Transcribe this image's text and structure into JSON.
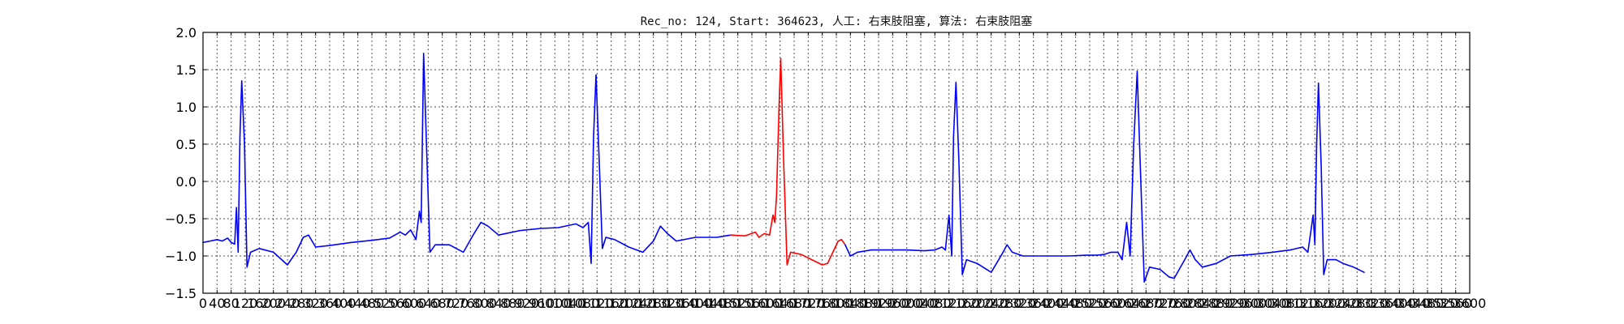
{
  "title": "Rec_no: 124, Start: 364623, 人工: 右束肢阻塞, 算法: 右束肢阻塞",
  "chart_data": {
    "type": "line",
    "title": "Rec_no: 124, Start: 364623, 人工: 右束肢阻塞, 算法: 右束肢阻塞",
    "xlabel": "",
    "ylabel": "",
    "xlim": [
      0,
      3600
    ],
    "ylim": [
      -1.5,
      2.0
    ],
    "grid": true,
    "legend": "none",
    "y_ticks": [
      -1.5,
      -1.0,
      -0.5,
      0.0,
      0.5,
      1.0,
      1.5,
      2.0
    ],
    "y_tick_labels": [
      "−1.5",
      "−1.0",
      "−0.5",
      "0.0",
      "0.5",
      "1.0",
      "1.5",
      "2.0"
    ],
    "x_tick_step": 40,
    "x_tick_labels_first": [
      "0",
      "40",
      "80"
    ],
    "beats_r_peak_x": [
      110,
      627,
      1117,
      1642,
      2140,
      2655,
      3170
    ],
    "beats_r_peak_y": [
      1.35,
      1.72,
      1.43,
      1.65,
      1.33,
      1.48,
      1.32
    ],
    "x_end": 3300,
    "series": [
      {
        "color": "#0000ff",
        "points": [
          [
            0,
            -0.82
          ],
          [
            20,
            -0.8
          ],
          [
            40,
            -0.78
          ],
          [
            55,
            -0.8
          ],
          [
            70,
            -0.76
          ],
          [
            80,
            -0.82
          ],
          [
            90,
            -0.84
          ],
          [
            95,
            -0.35
          ],
          [
            100,
            -0.95
          ],
          [
            105,
            0.6
          ],
          [
            110,
            1.35
          ],
          [
            118,
            0.5
          ],
          [
            125,
            -1.15
          ],
          [
            135,
            -0.95
          ],
          [
            160,
            -0.9
          ],
          [
            200,
            -0.95
          ],
          [
            240,
            -1.12
          ],
          [
            265,
            -0.95
          ],
          [
            285,
            -0.75
          ],
          [
            300,
            -0.72
          ],
          [
            320,
            -0.88
          ],
          [
            360,
            -0.86
          ],
          [
            420,
            -0.82
          ],
          [
            480,
            -0.79
          ],
          [
            530,
            -0.76
          ],
          [
            560,
            -0.68
          ],
          [
            575,
            -0.72
          ],
          [
            590,
            -0.65
          ],
          [
            605,
            -0.78
          ],
          [
            615,
            -0.4
          ],
          [
            620,
            -0.55
          ],
          [
            627,
            1.72
          ],
          [
            635,
            0.5
          ],
          [
            645,
            -0.95
          ],
          [
            660,
            -0.85
          ],
          [
            700,
            -0.85
          ],
          [
            740,
            -0.95
          ],
          [
            770,
            -0.7
          ],
          [
            790,
            -0.55
          ],
          [
            810,
            -0.6
          ],
          [
            840,
            -0.72
          ],
          [
            900,
            -0.66
          ],
          [
            960,
            -0.63
          ],
          [
            1010,
            -0.62
          ],
          [
            1060,
            -0.57
          ],
          [
            1080,
            -0.62
          ],
          [
            1095,
            -0.55
          ],
          [
            1103,
            -1.1
          ],
          [
            1110,
            0.6
          ],
          [
            1117,
            1.43
          ],
          [
            1125,
            0.4
          ],
          [
            1135,
            -0.9
          ],
          [
            1145,
            -0.75
          ],
          [
            1170,
            -0.78
          ],
          [
            1210,
            -0.88
          ],
          [
            1250,
            -0.95
          ],
          [
            1280,
            -0.8
          ],
          [
            1300,
            -0.6
          ],
          [
            1320,
            -0.7
          ],
          [
            1345,
            -0.8
          ],
          [
            1400,
            -0.75
          ],
          [
            1460,
            -0.75
          ],
          [
            1500,
            -0.72
          ]
        ]
      },
      {
        "color": "#ff0000",
        "points": [
          [
            1500,
            -0.72
          ],
          [
            1540,
            -0.73
          ],
          [
            1570,
            -0.68
          ],
          [
            1580,
            -0.75
          ],
          [
            1595,
            -0.7
          ],
          [
            1610,
            -0.72
          ],
          [
            1620,
            -0.45
          ],
          [
            1625,
            -0.55
          ],
          [
            1630,
            -0.2
          ],
          [
            1637,
            1.0
          ],
          [
            1642,
            1.65
          ],
          [
            1650,
            0.3
          ],
          [
            1660,
            -1.12
          ],
          [
            1670,
            -0.95
          ],
          [
            1700,
            -0.98
          ],
          [
            1730,
            -1.05
          ],
          [
            1760,
            -1.12
          ],
          [
            1775,
            -1.1
          ],
          [
            1790,
            -0.95
          ],
          [
            1805,
            -0.8
          ],
          [
            1815,
            -0.78
          ],
          [
            1825,
            -0.85
          ]
        ]
      },
      {
        "color": "#0000ff",
        "points": [
          [
            1825,
            -0.85
          ],
          [
            1840,
            -1.0
          ],
          [
            1860,
            -0.95
          ],
          [
            1900,
            -0.92
          ],
          [
            1950,
            -0.92
          ],
          [
            2000,
            -0.92
          ],
          [
            2050,
            -0.93
          ],
          [
            2080,
            -0.92
          ],
          [
            2100,
            -0.88
          ],
          [
            2110,
            -0.92
          ],
          [
            2120,
            -0.45
          ],
          [
            2128,
            -1.0
          ],
          [
            2133,
            0.6
          ],
          [
            2140,
            1.33
          ],
          [
            2148,
            0.3
          ],
          [
            2158,
            -1.25
          ],
          [
            2170,
            -1.05
          ],
          [
            2200,
            -1.1
          ],
          [
            2240,
            -1.22
          ],
          [
            2270,
            -0.98
          ],
          [
            2285,
            -0.85
          ],
          [
            2300,
            -0.95
          ],
          [
            2330,
            -1.0
          ],
          [
            2400,
            -1.0
          ],
          [
            2460,
            -1.0
          ],
          [
            2510,
            -0.99
          ],
          [
            2540,
            -0.99
          ],
          [
            2560,
            -0.98
          ],
          [
            2580,
            -0.95
          ],
          [
            2600,
            -0.95
          ],
          [
            2612,
            -1.05
          ],
          [
            2625,
            -0.55
          ],
          [
            2635,
            -1.0
          ],
          [
            2645,
            0.5
          ],
          [
            2655,
            1.48
          ],
          [
            2663,
            0.3
          ],
          [
            2675,
            -1.35
          ],
          [
            2690,
            -1.15
          ],
          [
            2720,
            -1.18
          ],
          [
            2745,
            -1.28
          ],
          [
            2760,
            -1.3
          ],
          [
            2790,
            -1.05
          ],
          [
            2805,
            -0.92
          ],
          [
            2820,
            -1.05
          ],
          [
            2840,
            -1.15
          ],
          [
            2880,
            -1.1
          ],
          [
            2920,
            -1.0
          ],
          [
            2980,
            -0.98
          ],
          [
            3040,
            -0.95
          ],
          [
            3090,
            -0.92
          ],
          [
            3125,
            -0.88
          ],
          [
            3140,
            -0.95
          ],
          [
            3155,
            -0.45
          ],
          [
            3160,
            -0.85
          ],
          [
            3165,
            0.5
          ],
          [
            3170,
            1.32
          ],
          [
            3178,
            0.2
          ],
          [
            3185,
            -1.25
          ],
          [
            3195,
            -1.05
          ],
          [
            3220,
            -1.05
          ],
          [
            3240,
            -1.1
          ],
          [
            3270,
            -1.15
          ],
          [
            3300,
            -1.22
          ]
        ]
      }
    ]
  }
}
